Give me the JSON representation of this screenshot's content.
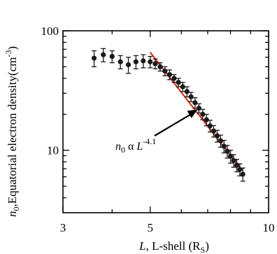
{
  "chart_data": {
    "type": "scatter",
    "title": "",
    "x_scale": "log",
    "y_scale": "log",
    "xlim": [
      3,
      10
    ],
    "ylim": [
      3,
      100
    ],
    "x_ticks": [
      3,
      5,
      10
    ],
    "x_tick_labels": [
      "3",
      "5",
      "10"
    ],
    "y_ticks": [
      10,
      100
    ],
    "y_tick_labels": [
      "10",
      "100"
    ],
    "xlabel": {
      "var": "L",
      "text": ", L-shell (R",
      "sub": "S",
      "close": ")"
    },
    "ylabel": {
      "var": "n",
      "sub": "0",
      "text": ",Equatorial electron density(cm",
      "sup": "-3",
      "close": ")"
    },
    "grid": false,
    "series": [
      {
        "marker": "filled-circle",
        "color": "#1a1a1a",
        "points": [
          {
            "x": 3.6,
            "y": 59,
            "err": 9
          },
          {
            "x": 3.8,
            "y": 63,
            "err": 8
          },
          {
            "x": 4.0,
            "y": 61,
            "err": 7
          },
          {
            "x": 4.2,
            "y": 55,
            "err": 7
          },
          {
            "x": 4.4,
            "y": 52,
            "err": 8
          },
          {
            "x": 4.6,
            "y": 55,
            "err": 7
          },
          {
            "x": 4.8,
            "y": 56,
            "err": 7
          },
          {
            "x": 5.0,
            "y": 55,
            "err": 6
          },
          {
            "x": 5.15,
            "y": 53,
            "err": 5
          },
          {
            "x": 5.3,
            "y": 50,
            "err": 4
          },
          {
            "x": 5.45,
            "y": 46,
            "err": 4
          },
          {
            "x": 5.6,
            "y": 43,
            "err": 4
          },
          {
            "x": 5.75,
            "y": 40,
            "err": 3
          },
          {
            "x": 5.9,
            "y": 37,
            "err": 3
          },
          {
            "x": 6.05,
            "y": 34,
            "err": 3
          },
          {
            "x": 6.2,
            "y": 31,
            "err": 3
          },
          {
            "x": 6.35,
            "y": 28,
            "err": 2.5
          },
          {
            "x": 6.5,
            "y": 25,
            "err": 2.5
          },
          {
            "x": 6.65,
            "y": 22.5,
            "err": 2
          },
          {
            "x": 6.8,
            "y": 20,
            "err": 2
          },
          {
            "x": 6.95,
            "y": 18,
            "err": 2
          },
          {
            "x": 7.1,
            "y": 16,
            "err": 1.8
          },
          {
            "x": 7.25,
            "y": 14.5,
            "err": 1.6
          },
          {
            "x": 7.4,
            "y": 13.2,
            "err": 1.5
          },
          {
            "x": 7.55,
            "y": 12,
            "err": 1.4
          },
          {
            "x": 7.7,
            "y": 10.8,
            "err": 1.3
          },
          {
            "x": 7.85,
            "y": 9.8,
            "err": 1.2
          },
          {
            "x": 8.0,
            "y": 8.9,
            "err": 1.1
          },
          {
            "x": 8.15,
            "y": 8.2,
            "err": 1.0
          },
          {
            "x": 8.3,
            "y": 7.5,
            "err": 0.9
          },
          {
            "x": 8.45,
            "y": 6.9,
            "err": 0.8
          },
          {
            "x": 8.6,
            "y": 6.3,
            "err": 0.8
          }
        ]
      }
    ],
    "fit_line": {
      "color": "#d9321f",
      "from": {
        "x": 5.0,
        "y": 66
      },
      "to": {
        "x": 8.5,
        "y": 7
      }
    },
    "annotation": {
      "var": "n",
      "sub": "0",
      "alpha": "α",
      "base": "L",
      "sup": "-4.1",
      "arrow_to": {
        "x": 6.6,
        "y": 22
      }
    }
  }
}
